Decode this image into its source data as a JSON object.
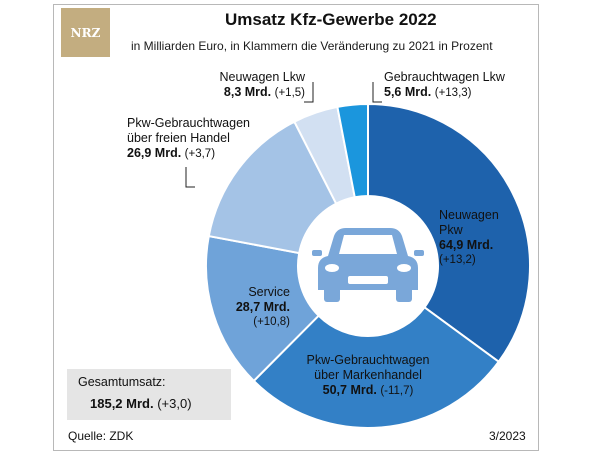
{
  "logo_text": "NRZ",
  "chart_data": {
    "type": "pie",
    "title": "Umsatz Kfz-Gewerbe 2022",
    "subtitle": "in Milliarden Euro, in Klammern die Veränderung zu 2021 in Prozent",
    "slices": [
      {
        "name_lines": [
          "Neuwagen",
          "Pkw"
        ],
        "value": 64.9,
        "value_label": "64,9 Mrd.",
        "change": "(+13,2)",
        "color": "#1e62ac"
      },
      {
        "name_lines": [
          "Pkw-Gebrauchtwagen",
          "über Markenhandel"
        ],
        "value": 50.7,
        "value_label": "50,7 Mrd.",
        "change": "(-11,7)",
        "color": "#3380c6"
      },
      {
        "name_lines": [
          "Service"
        ],
        "value": 28.7,
        "value_label": "28,7 Mrd.",
        "change": "(+10,8)",
        "color": "#6fa3d9"
      },
      {
        "name_lines": [
          "Pkw-Gebrauchtwagen",
          "über freien Handel"
        ],
        "value": 26.9,
        "value_label": "26,9 Mrd.",
        "change": "(+3,7)",
        "color": "#a4c3e6"
      },
      {
        "name_lines": [
          "Neuwagen Lkw"
        ],
        "value": 8.3,
        "value_label": "8,3 Mrd.",
        "change": "(+1,5)",
        "color": "#d2e0f2"
      },
      {
        "name_lines": [
          "Gebrauchtwagen Lkw"
        ],
        "value": 5.6,
        "value_label": "5,6 Mrd.",
        "change": "(+13,3)",
        "color": "#1b96dd"
      }
    ],
    "total": {
      "label": "Gesamtumsatz:",
      "value_label": "185,2 Mrd.",
      "change": "(+3,0)"
    },
    "center_icon": "car-icon"
  },
  "source": "Quelle: ZDK",
  "date": "3/2023"
}
